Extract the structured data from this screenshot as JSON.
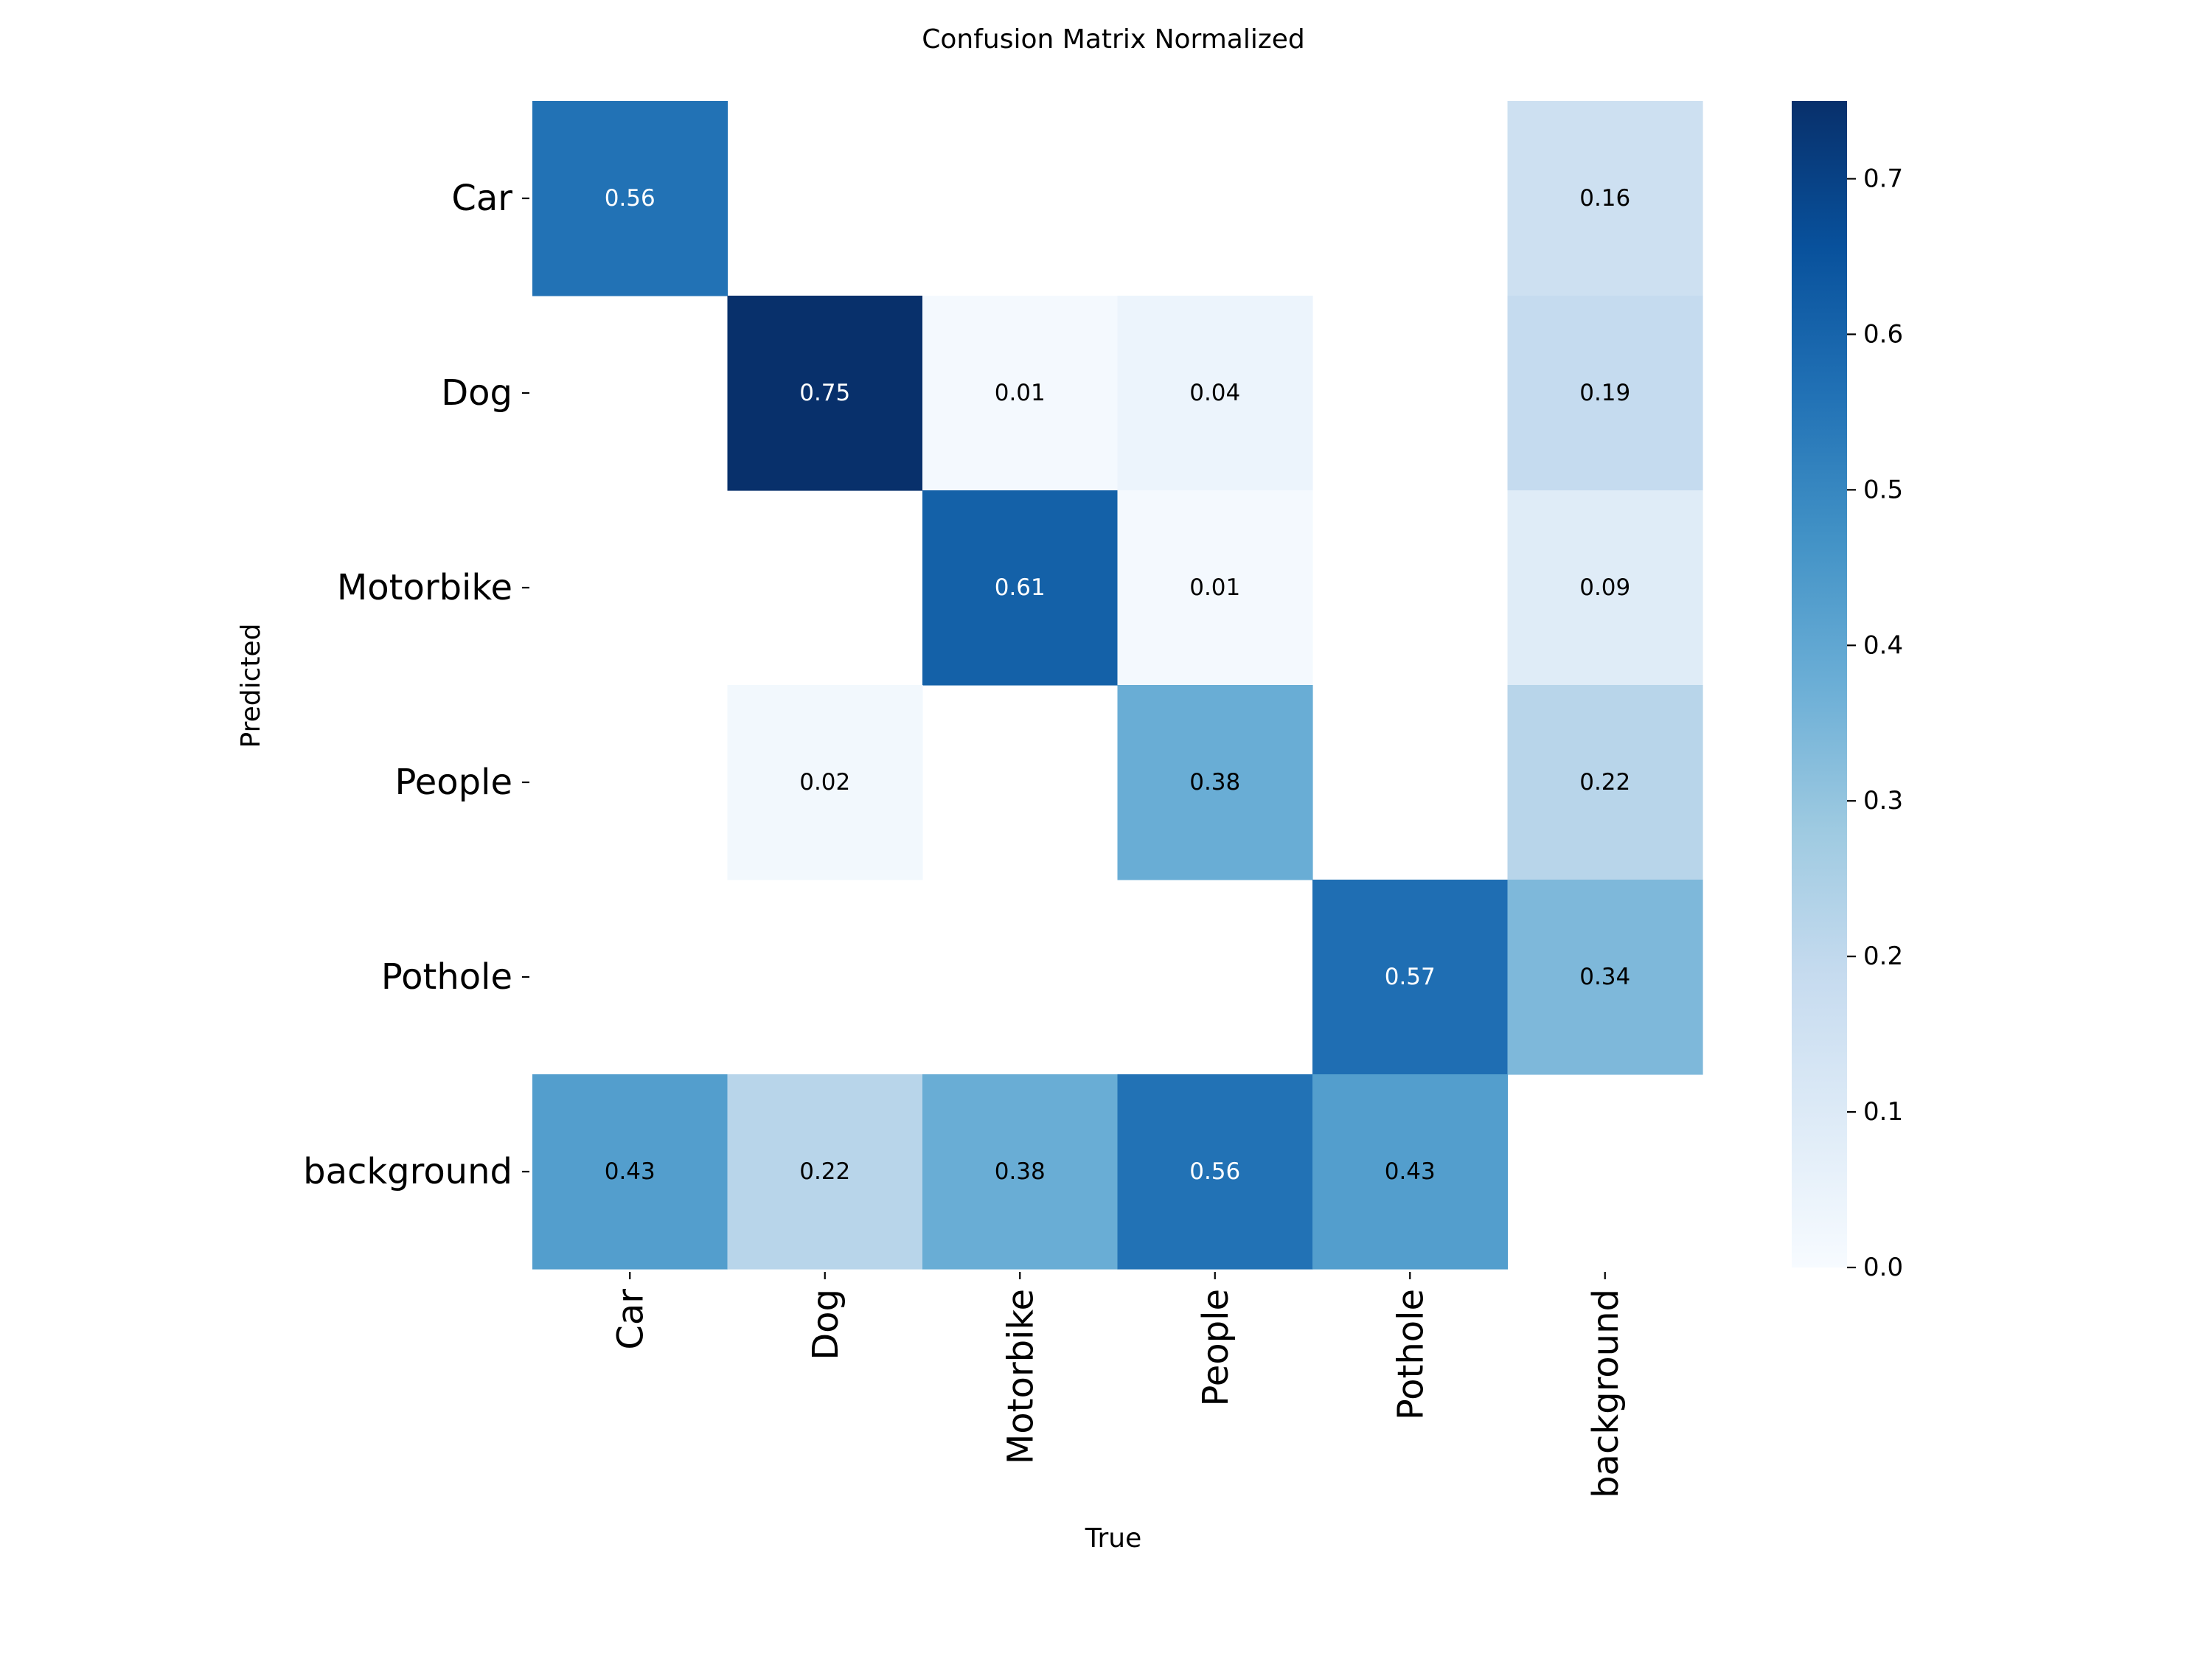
{
  "chart_data": {
    "type": "heatmap",
    "title": "Confusion Matrix Normalized",
    "xlabel": "True",
    "ylabel": "Predicted",
    "x_categories": [
      "Car",
      "Dog",
      "Motorbike",
      "People",
      "Pothole",
      "background"
    ],
    "y_categories": [
      "Car",
      "Dog",
      "Motorbike",
      "People",
      "Pothole",
      "background"
    ],
    "values": [
      [
        0.56,
        null,
        null,
        null,
        null,
        0.16
      ],
      [
        null,
        0.75,
        0.01,
        0.04,
        null,
        0.19
      ],
      [
        null,
        null,
        0.61,
        0.01,
        null,
        0.09
      ],
      [
        null,
        0.02,
        null,
        0.38,
        null,
        0.22
      ],
      [
        null,
        null,
        null,
        null,
        0.57,
        0.34
      ],
      [
        0.43,
        0.22,
        0.38,
        0.56,
        0.43,
        null
      ]
    ],
    "colorbar": {
      "colormap": "Blues",
      "min": 0.0,
      "max": 0.75,
      "ticks": [
        "0.0",
        "0.1",
        "0.2",
        "0.3",
        "0.4",
        "0.5",
        "0.6",
        "0.7"
      ]
    }
  }
}
